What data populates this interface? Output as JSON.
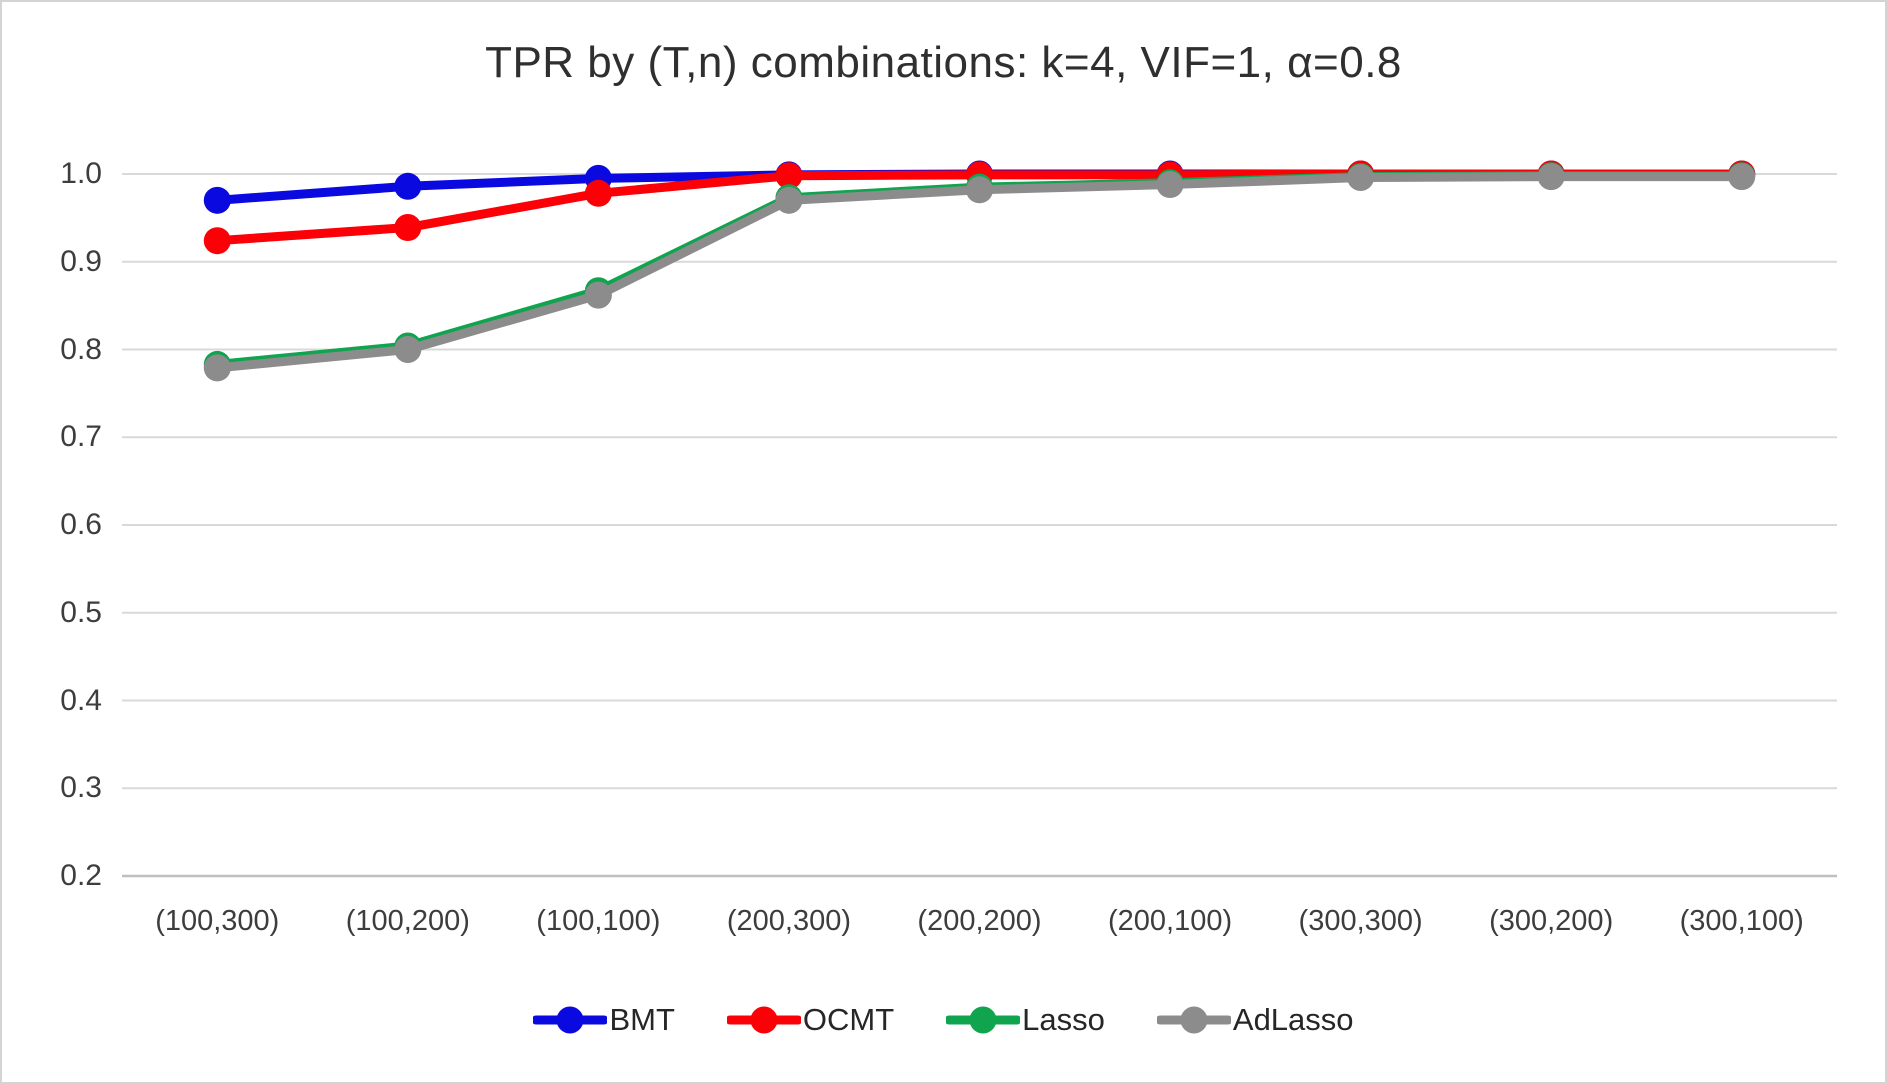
{
  "chart_data": {
    "type": "line",
    "title": "TPR by (T,n) combinations: k=4, VIF=1, α=0.8",
    "xlabel": "",
    "ylabel": "",
    "categories": [
      "(100,300)",
      "(100,200)",
      "(100,100)",
      "(200,300)",
      "(200,200)",
      "(200,100)",
      "(300,300)",
      "(300,200)",
      "(300,100)"
    ],
    "series": [
      {
        "name": "BMT",
        "color": "#0a0ae0",
        "values": [
          0.97,
          0.986,
          0.995,
          0.999,
          1.0,
          1.0,
          1.0,
          1.0,
          1.0
        ]
      },
      {
        "name": "OCMT",
        "color": "#fb0007",
        "values": [
          0.924,
          0.939,
          0.978,
          0.998,
          0.999,
          0.999,
          1.0,
          1.0,
          1.0
        ]
      },
      {
        "name": "Lasso",
        "color": "#10a44f",
        "values": [
          0.783,
          0.804,
          0.867,
          0.973,
          0.985,
          0.99,
          0.997,
          0.998,
          0.998
        ]
      },
      {
        "name": "AdLasso",
        "color": "#8c8c8c",
        "values": [
          0.779,
          0.8,
          0.862,
          0.97,
          0.982,
          0.988,
          0.996,
          0.997,
          0.997
        ]
      }
    ],
    "ylim": [
      0.2,
      1.0
    ],
    "yticks": [
      "1.0",
      "0.9",
      "0.8",
      "0.7",
      "0.6",
      "0.5",
      "0.4",
      "0.3",
      "0.2"
    ],
    "grid": "horizontal",
    "gridline_color": "#d9d9d9",
    "axis_line_color": "#bfbfbf",
    "legend_position": "bottom",
    "marker": "circle"
  }
}
